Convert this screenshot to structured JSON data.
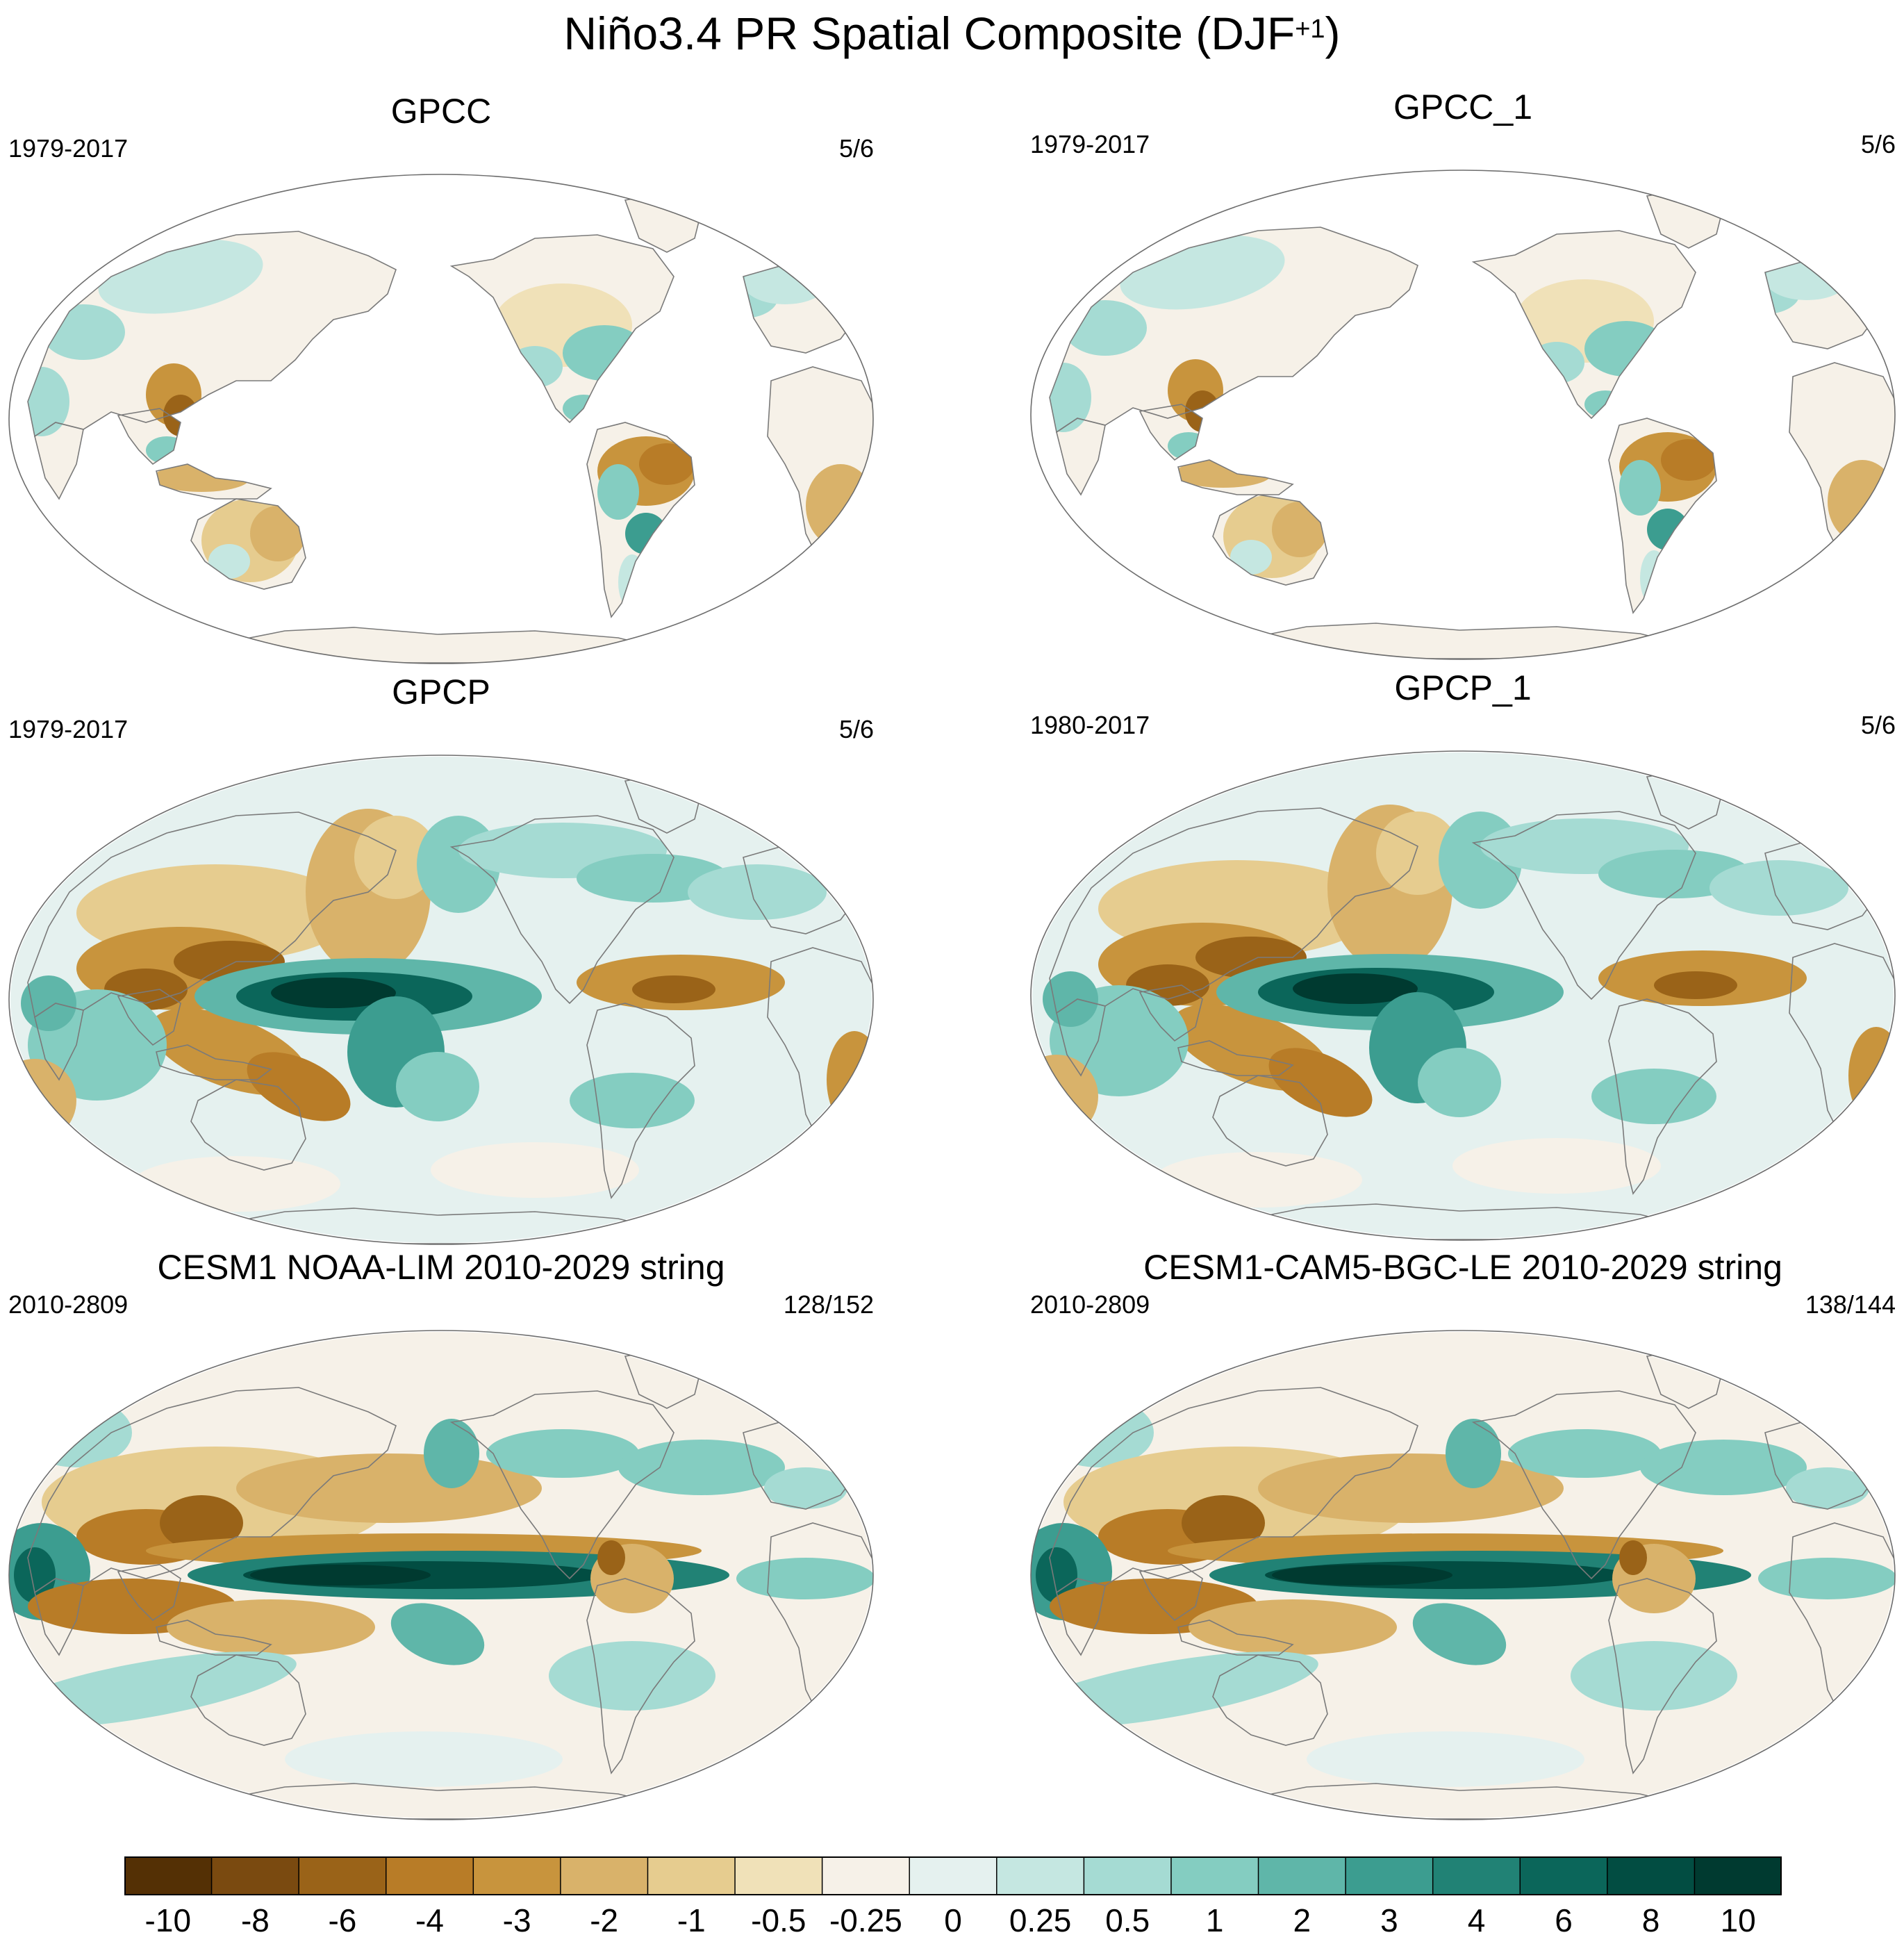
{
  "figure": {
    "title_main": "Niño3.4 PR Spatial Composite (DJF",
    "title_sup": "+1",
    "title_end": ")"
  },
  "panels": [
    {
      "title": "GPCC",
      "years": "1979-2017",
      "count": "5/6",
      "kind": "land-obs"
    },
    {
      "title": "GPCC_1",
      "years": "1979-2017",
      "count": "5/6",
      "kind": "land-obs"
    },
    {
      "title": "GPCP",
      "years": "1979-2017",
      "count": "5/6",
      "kind": "global-obs"
    },
    {
      "title": "GPCP_1",
      "years": "1980-2017",
      "count": "5/6",
      "kind": "global-obs"
    },
    {
      "title": "CESM1 NOAA-LIM 2010-2029 string",
      "years": "2010-2809",
      "count": "128/152",
      "kind": "model"
    },
    {
      "title": "CESM1-CAM5-BGC-LE 2010-2029 string",
      "years": "2010-2809",
      "count": "138/144",
      "kind": "model"
    }
  ],
  "colorbar": {
    "labels": [
      "-10",
      "-8",
      "-6",
      "-4",
      "-3",
      "-2",
      "-1",
      "-0.5",
      "-0.25",
      "0",
      "0.25",
      "0.5",
      "1",
      "2",
      "3",
      "4",
      "6",
      "8",
      "10"
    ],
    "colors": [
      "#543005",
      "#7a4a10",
      "#9a6318",
      "#b87c27",
      "#c8943d",
      "#d9b26a",
      "#e6cc8f",
      "#f0e1b8",
      "#f6f1e8",
      "#e5f1ef",
      "#c5e7e1",
      "#a5dbd3",
      "#84cdc1",
      "#5fb6a9",
      "#3c9d90",
      "#218275",
      "#0b665a",
      "#024d42",
      "#003a30"
    ]
  }
}
